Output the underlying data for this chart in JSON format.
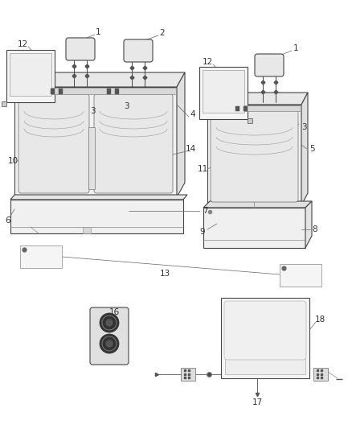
{
  "bg_color": "#ffffff",
  "line_color": "#444444",
  "label_color": "#333333",
  "fig_width": 4.38,
  "fig_height": 5.33,
  "dpi": 100,
  "callout_lw": 0.5,
  "main_lw": 0.8,
  "thin_lw": 0.5
}
